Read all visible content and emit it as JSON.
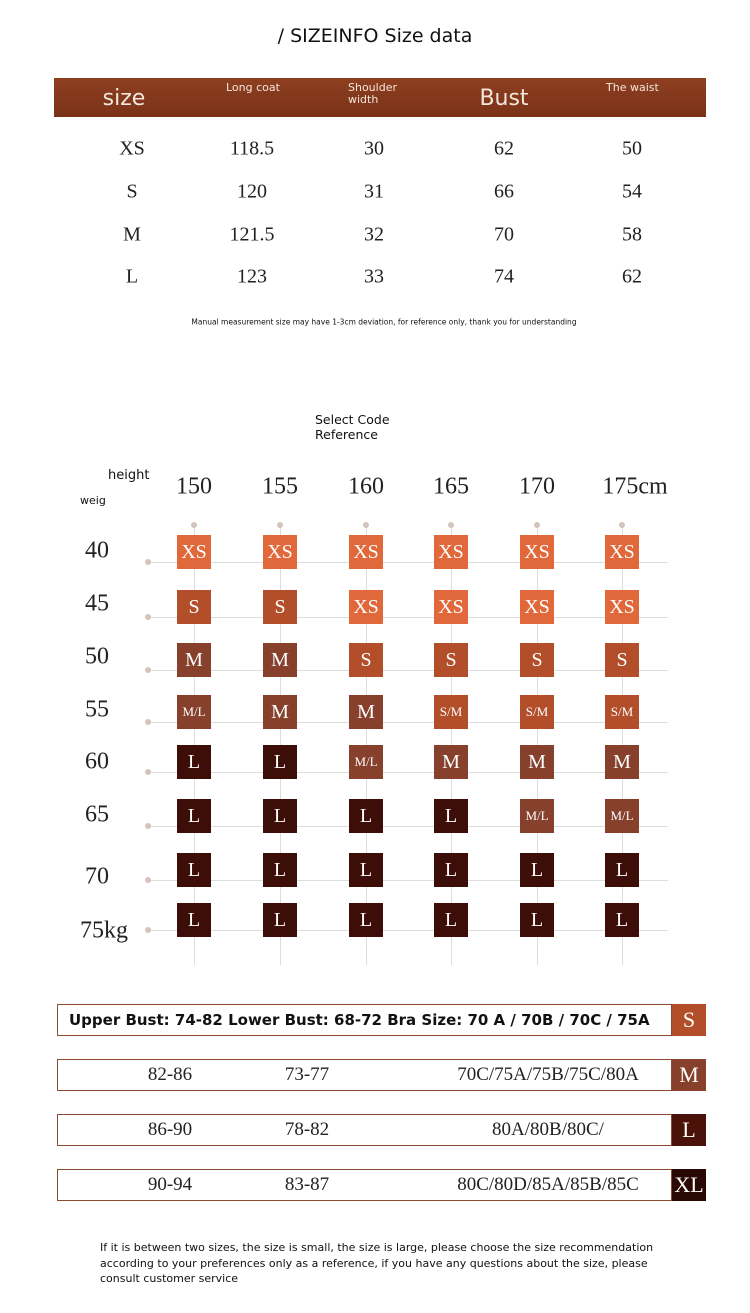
{
  "title": "/ SIZEINFO Size data",
  "size_table": {
    "headers": [
      "size",
      "Long coat",
      "Shoulder width",
      "Bust",
      "The waist"
    ],
    "rows": [
      [
        "XS",
        "118.5",
        "30",
        "62",
        "50"
      ],
      [
        "S",
        "120",
        "31",
        "66",
        "54"
      ],
      [
        "M",
        "121.5",
        "32",
        "70",
        "58"
      ],
      [
        "L",
        "123",
        "33",
        "74",
        "62"
      ]
    ]
  },
  "note": "Manual measurement size may have 1-3cm deviation, for reference only, thank you for understanding",
  "reference": {
    "title": "Select Code Reference",
    "height_label": "height",
    "weight_label": "weig",
    "heights": [
      "150",
      "155",
      "160",
      "165",
      "170",
      "175cm"
    ],
    "weights": [
      "40",
      "45",
      "50",
      "55",
      "60",
      "65",
      "70",
      "75kg"
    ],
    "grid": [
      [
        "XS",
        "XS",
        "XS",
        "XS",
        "XS",
        "XS"
      ],
      [
        "S",
        "S",
        "XS",
        "XS",
        "XS",
        "XS"
      ],
      [
        "M",
        "M",
        "S",
        "S",
        "S",
        "S"
      ],
      [
        "M/L",
        "M",
        "M",
        "S/M",
        "S/M",
        "S/M"
      ],
      [
        "L",
        "L",
        "M/L",
        "M",
        "M",
        "M"
      ],
      [
        "L",
        "L",
        "L",
        "L",
        "M/L",
        "M/L"
      ],
      [
        "L",
        "L",
        "L",
        "L",
        "L",
        "L"
      ],
      [
        "L",
        "L",
        "L",
        "L",
        "L",
        "L"
      ]
    ],
    "colors": {
      "XS": "#e0683a",
      "S": "#b24e2a",
      "S/M": "#b24e2a",
      "M": "#86402c",
      "M/L": "#86402c",
      "L": "#3d0e07"
    }
  },
  "bra_table": {
    "rows": [
      {
        "text": "Upper Bust: 74-82 Lower Bust: 68-72 Bra Size: 70 A / 70B / 70C / 75A",
        "size": "S",
        "color": "#b24e2a"
      },
      {
        "cells": [
          "82-86",
          "73-77",
          "70C/75A/75B/75C/80A"
        ],
        "size": "M",
        "color": "#86402c"
      },
      {
        "cells": [
          "86-90",
          "78-82",
          "80A/80B/80C/"
        ],
        "size": "L",
        "color": "#4a1208"
      },
      {
        "cells": [
          "90-94",
          "83-87",
          "80C/80D/85A/85B/85C"
        ],
        "size": "XL",
        "color": "#2a0804"
      }
    ]
  },
  "footer": "If it is between two sizes, the size is small, the size is large, please choose the size recommendation according to your preferences only as a reference, if you have any questions about the size, please consult customer service"
}
